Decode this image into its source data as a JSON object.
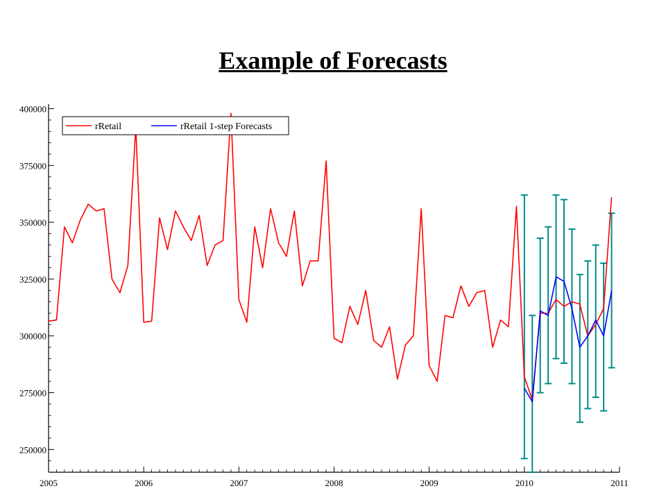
{
  "slide": {
    "title": "Example of Forecasts"
  },
  "chart_data": {
    "type": "line",
    "title": "",
    "xlabel": "",
    "ylabel": "",
    "xlim": [
      2005,
      2011
    ],
    "ylim": [
      240000,
      402000
    ],
    "y_ticks": [
      250000,
      275000,
      300000,
      325000,
      350000,
      375000,
      400000
    ],
    "y_tick_labels": [
      "250000",
      "275000",
      "300000",
      "325000",
      "350000",
      "375000",
      "400000"
    ],
    "x_ticks": [
      2005,
      2006,
      2007,
      2008,
      2009,
      2010,
      2011
    ],
    "x_tick_labels": [
      "2005",
      "2006",
      "2007",
      "2008",
      "2009",
      "2010",
      "2011"
    ],
    "legend_position": "top-left",
    "grid": false,
    "colors": {
      "actual": "#ff0000",
      "forecast": "#0000ff",
      "error_bars": "#008b8b"
    },
    "series": [
      {
        "name": "rRetail",
        "start": 2005.0,
        "step": 0.08333,
        "values": [
          306500,
          307000,
          348000,
          341000,
          351000,
          358000,
          355000,
          356000,
          325000,
          319000,
          331000,
          392000,
          306000,
          306500,
          352000,
          338000,
          355000,
          348000,
          342000,
          353000,
          331000,
          340000,
          342000,
          398000,
          316000,
          306000,
          348000,
          330000,
          356000,
          341000,
          335000,
          355000,
          322000,
          333000,
          333000,
          377000,
          299000,
          297000,
          313000,
          305000,
          320000,
          298000,
          295000,
          304000,
          281000,
          296000,
          300000,
          356000,
          287000,
          280000,
          309000,
          308000,
          322000,
          313000,
          319000,
          320000,
          295000,
          307000,
          304000,
          357000,
          282000,
          272000,
          310000,
          310000,
          316000,
          313000,
          315000,
          314000,
          300000,
          305000,
          312000,
          361000
        ]
      },
      {
        "name": "rRetail 1-step Forecasts",
        "start": 2010.0,
        "step": 0.08333,
        "values": [
          277000,
          271000,
          311000,
          309000,
          326000,
          324000,
          312000,
          295000,
          300000,
          307000,
          300000,
          320000
        ]
      }
    ],
    "error_bars": {
      "x_start": 2010.0,
      "step": 0.08333,
      "low": [
        246000,
        240000,
        275000,
        279000,
        290000,
        288000,
        279000,
        262000,
        268000,
        273000,
        267000,
        286000
      ],
      "high": [
        362000,
        309000,
        343000,
        348000,
        362000,
        360000,
        347000,
        327000,
        333000,
        340000,
        332000,
        354000
      ]
    }
  }
}
